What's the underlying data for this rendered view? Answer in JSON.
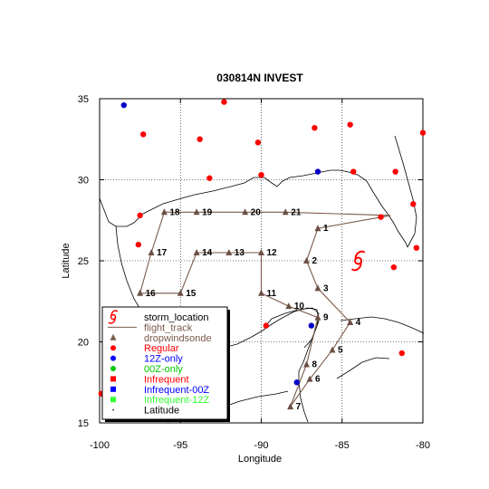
{
  "title": "030814N INVEST",
  "xlabel": "Longitude",
  "ylabel": "Latitude",
  "colors": {
    "track": "#7a5a4a",
    "dropwindsonde": "#6b4f45",
    "regular": "#ff0000",
    "twelve_z_only": "#0000c8",
    "zero_z_only": "#00c800",
    "infrequent": "#ff0000",
    "infrequent_00z": "#0000ff",
    "infrequent_12z": "#33ff33",
    "storm": "#ff0000"
  },
  "chart_data": {
    "type": "scatter",
    "xlim": [
      -100,
      -80
    ],
    "ylim": [
      15,
      35
    ],
    "xticks": [
      -100,
      -95,
      -90,
      -85,
      -80
    ],
    "yticks": [
      15,
      20,
      25,
      30,
      35
    ],
    "x_tick_labels": [
      "-100",
      "-95",
      "-90",
      "-85",
      "-80"
    ],
    "y_tick_labels": [
      "15",
      "20",
      "25",
      "30",
      "35"
    ],
    "grid": "dotted",
    "storm_location": {
      "lon": -84.0,
      "lat": 25.0
    },
    "flight_track": [
      {
        "lon": -82.0,
        "lat": 27.8,
        "label": ""
      },
      {
        "lon": -86.5,
        "lat": 27.0,
        "label": "1"
      },
      {
        "lon": -87.2,
        "lat": 25.0,
        "label": "2"
      },
      {
        "lon": -86.5,
        "lat": 23.3,
        "label": "3"
      },
      {
        "lon": -84.5,
        "lat": 21.2,
        "label": "4"
      },
      {
        "lon": -85.6,
        "lat": 19.5,
        "label": "5"
      },
      {
        "lon": -87.0,
        "lat": 17.7,
        "label": "6"
      },
      {
        "lon": -88.2,
        "lat": 16.0,
        "label": "7"
      },
      {
        "lon": -87.2,
        "lat": 18.6,
        "label": "8"
      },
      {
        "lon": -86.5,
        "lat": 21.5,
        "label": "9"
      },
      {
        "lon": -88.3,
        "lat": 22.2,
        "label": "10"
      },
      {
        "lon": -90.0,
        "lat": 23.0,
        "label": "11"
      },
      {
        "lon": -90.0,
        "lat": 25.5,
        "label": "12"
      },
      {
        "lon": -92.0,
        "lat": 25.5,
        "label": "13"
      },
      {
        "lon": -94.0,
        "lat": 25.5,
        "label": "14"
      },
      {
        "lon": -95.0,
        "lat": 23.0,
        "label": "15"
      },
      {
        "lon": -97.5,
        "lat": 23.0,
        "label": "16"
      },
      {
        "lon": -96.8,
        "lat": 25.5,
        "label": "17"
      },
      {
        "lon": -96.0,
        "lat": 28.0,
        "label": "18"
      },
      {
        "lon": -94.0,
        "lat": 28.0,
        "label": "19"
      },
      {
        "lon": -91.0,
        "lat": 28.0,
        "label": "20"
      },
      {
        "lon": -88.5,
        "lat": 28.0,
        "label": "21"
      },
      {
        "lon": -82.0,
        "lat": 27.8,
        "label": ""
      }
    ],
    "regular_stations": [
      {
        "lon": -97.3,
        "lat": 32.8
      },
      {
        "lon": -93.8,
        "lat": 32.5
      },
      {
        "lon": -90.2,
        "lat": 32.3
      },
      {
        "lon": -86.7,
        "lat": 33.2
      },
      {
        "lon": -84.5,
        "lat": 33.4
      },
      {
        "lon": -80.0,
        "lat": 32.9
      },
      {
        "lon": -93.2,
        "lat": 30.1
      },
      {
        "lon": -90.0,
        "lat": 30.3
      },
      {
        "lon": -84.3,
        "lat": 30.5
      },
      {
        "lon": -81.7,
        "lat": 30.5
      },
      {
        "lon": -97.5,
        "lat": 27.8
      },
      {
        "lon": -97.6,
        "lat": 26.0
      },
      {
        "lon": -82.6,
        "lat": 27.7
      },
      {
        "lon": -80.4,
        "lat": 25.8
      },
      {
        "lon": -81.8,
        "lat": 24.6
      },
      {
        "lon": -80.6,
        "lat": 28.5
      },
      {
        "lon": -89.7,
        "lat": 21.0
      },
      {
        "lon": -81.3,
        "lat": 19.3
      },
      {
        "lon": -99.9,
        "lat": 16.8
      },
      {
        "lon": -92.3,
        "lat": 34.8
      }
    ],
    "twelve_z_only_stations": [
      {
        "lon": -98.5,
        "lat": 34.6
      },
      {
        "lon": -86.5,
        "lat": 30.5
      },
      {
        "lon": -86.9,
        "lat": 21.0
      },
      {
        "lon": -87.8,
        "lat": 17.5
      }
    ],
    "legend": [
      {
        "label": "storm_location",
        "marker": "storm",
        "color": "#000000"
      },
      {
        "label": "flight_track",
        "marker": "line",
        "color": "#7a5a4a"
      },
      {
        "label": "dropwindsonde",
        "marker": "triangle",
        "color": "#7a5a4a"
      },
      {
        "label": "Regular",
        "marker": "circle",
        "color": "#ff0000"
      },
      {
        "label": "12Z-only",
        "marker": "circle",
        "color": "#0000ff"
      },
      {
        "label": "00Z-only",
        "marker": "circle",
        "color": "#00c800"
      },
      {
        "label": "Infrequent",
        "marker": "square",
        "color": "#ff0000"
      },
      {
        "label": "Infrequent-00Z",
        "marker": "square",
        "color": "#0000ff"
      },
      {
        "label": "Infrequent-12Z",
        "marker": "square",
        "color": "#33ff33"
      },
      {
        "label": "Latitude",
        "marker": "dot",
        "color": "#000000"
      }
    ]
  }
}
